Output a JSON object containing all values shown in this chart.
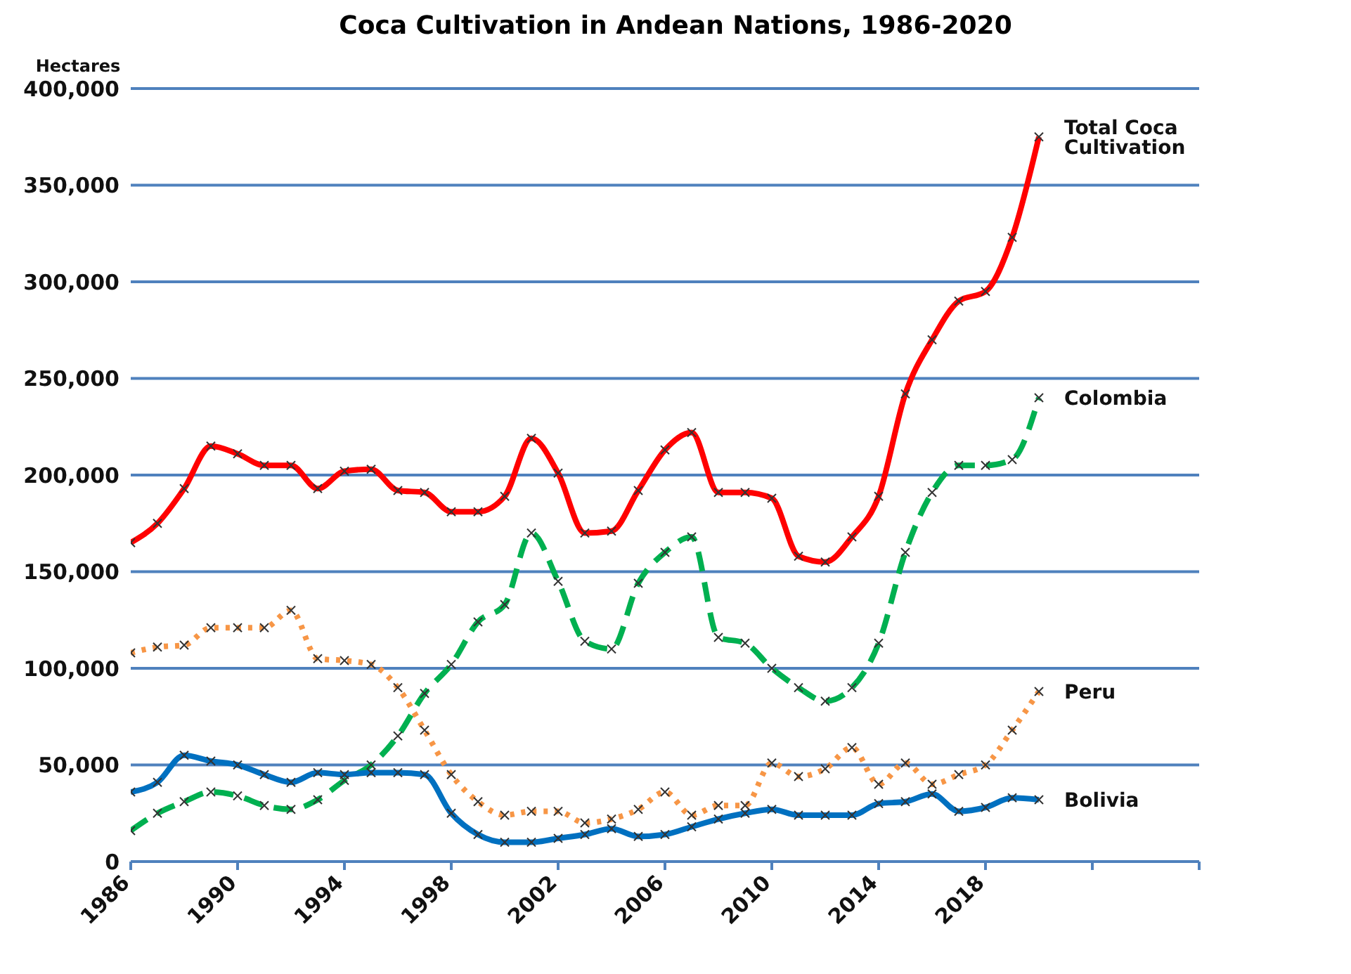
{
  "chart_data": {
    "type": "line",
    "title": "Coca Cultivation in Andean Nations, 1986-2020",
    "ylabel": "Hectares",
    "x": [
      1986,
      1987,
      1988,
      1989,
      1990,
      1991,
      1992,
      1993,
      1994,
      1995,
      1996,
      1997,
      1998,
      1999,
      2000,
      2001,
      2002,
      2003,
      2004,
      2005,
      2006,
      2007,
      2008,
      2009,
      2010,
      2011,
      2012,
      2013,
      2014,
      2015,
      2016,
      2017,
      2018,
      2019,
      2020
    ],
    "series": [
      {
        "name": "Total Coca Cultivation",
        "color": "#ff0000",
        "line_style": "solid",
        "values": [
          165000,
          175000,
          193000,
          215000,
          211000,
          205000,
          205000,
          193000,
          202000,
          203000,
          192000,
          191000,
          181000,
          181000,
          189000,
          219000,
          201000,
          170000,
          171000,
          192000,
          213000,
          222000,
          191000,
          191000,
          188000,
          158000,
          155000,
          168000,
          189000,
          242000,
          270000,
          290000,
          295000,
          323000,
          375000
        ]
      },
      {
        "name": "Colombia",
        "color": "#00b050",
        "line_style": "dashed",
        "values": [
          16000,
          25000,
          31000,
          36000,
          34000,
          29000,
          27000,
          32000,
          42000,
          50000,
          65000,
          87000,
          102000,
          124000,
          133000,
          170000,
          145000,
          114000,
          110000,
          144000,
          160000,
          168000,
          116000,
          113000,
          100000,
          90000,
          83000,
          90000,
          113000,
          160000,
          191000,
          205000,
          205000,
          208000,
          240000
        ]
      },
      {
        "name": "Peru",
        "color": "#f79646",
        "line_style": "dotted",
        "values": [
          108000,
          111000,
          112000,
          121000,
          121000,
          121000,
          130000,
          105000,
          104000,
          102000,
          90000,
          68000,
          45000,
          31000,
          24000,
          26000,
          26000,
          20000,
          22000,
          27000,
          36000,
          24000,
          29000,
          29000,
          51000,
          44000,
          48000,
          59000,
          40000,
          51000,
          40000,
          45000,
          50000,
          68000,
          88000
        ]
      },
      {
        "name": "Bolivia",
        "color": "#0070c0",
        "line_style": "solid",
        "values": [
          36000,
          41000,
          55000,
          52000,
          50000,
          45000,
          41000,
          46000,
          45000,
          46000,
          46000,
          45000,
          25000,
          14000,
          10000,
          10000,
          12000,
          14000,
          17000,
          13000,
          14000,
          18000,
          22000,
          25000,
          27000,
          24000,
          24000,
          24000,
          30000,
          31000,
          35000,
          26000,
          28000,
          33000,
          32000
        ]
      }
    ],
    "xlim": [
      1986,
      2026
    ],
    "xticks": [
      1986,
      1990,
      1994,
      1998,
      2002,
      2006,
      2010,
      2014,
      2018,
      {
        "value": 2022,
        "label": null
      },
      {
        "value": 2026,
        "label": null
      }
    ],
    "ylim": [
      0,
      400000
    ],
    "yticks": [
      0,
      {
        "value": 50000,
        "label": "50,000"
      },
      {
        "value": 100000,
        "label": "100,000"
      },
      {
        "value": 150000,
        "label": "150,000"
      },
      {
        "value": 200000,
        "label": "200,000"
      },
      {
        "value": 250000,
        "label": "250,000"
      },
      {
        "value": 300000,
        "label": "300,000"
      },
      {
        "value": 350000,
        "label": "350,000"
      },
      {
        "value": 400000,
        "label": "400,000"
      }
    ],
    "grid": "y",
    "marker": "cross"
  }
}
